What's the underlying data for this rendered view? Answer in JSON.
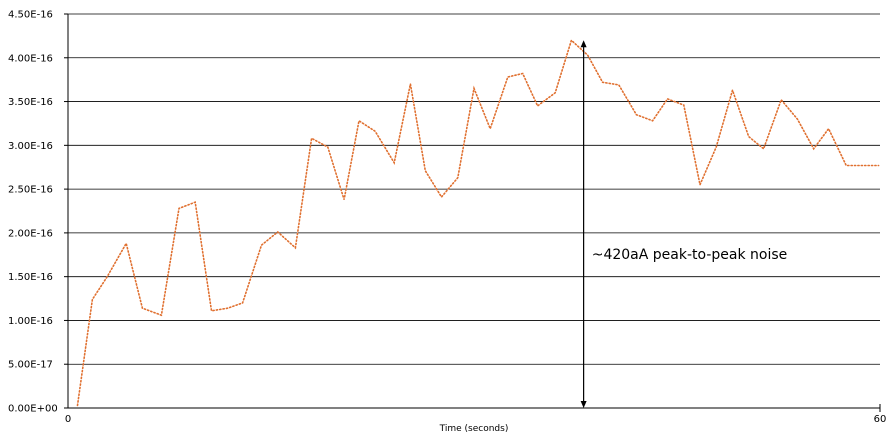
{
  "chart_data": {
    "type": "line",
    "title": "",
    "xlabel": "Time (seconds)",
    "ylabel": "",
    "xlim": [
      0,
      60
    ],
    "ylim": [
      0,
      4.5e-16
    ],
    "x_ticks": [
      {
        "value": 0,
        "label": "0"
      },
      {
        "value": 60,
        "label": "60"
      }
    ],
    "y_ticks": [
      {
        "value": 0,
        "label": "0.00E+00"
      },
      {
        "value": 5e-17,
        "label": "5.00E-17"
      },
      {
        "value": 1e-16,
        "label": "1.00E-16"
      },
      {
        "value": 1.5e-16,
        "label": "1.50E-16"
      },
      {
        "value": 2e-16,
        "label": "2.00E-16"
      },
      {
        "value": 2.5e-16,
        "label": "2.50E-16"
      },
      {
        "value": 3e-16,
        "label": "3.00E-16"
      },
      {
        "value": 3.5e-16,
        "label": "3.50E-16"
      },
      {
        "value": 4e-16,
        "label": "4.00E-16"
      },
      {
        "value": 4.5e-16,
        "label": "4.50E-16"
      }
    ],
    "grid": "horizontal",
    "legend": "none",
    "series": [
      {
        "color": "#e07030",
        "line_style": "dotted",
        "x": [
          0.7,
          1.8,
          2.9,
          4.3,
          5.5,
          6.9,
          8.2,
          9.4,
          10.6,
          11.8,
          12.9,
          14.3,
          15.5,
          16.8,
          18.0,
          19.2,
          20.4,
          21.5,
          22.7,
          24.1,
          25.3,
          26.4,
          27.6,
          28.8,
          30.0,
          31.2,
          32.5,
          33.6,
          34.7,
          36.0,
          37.2,
          38.4,
          39.5,
          40.7,
          42.0,
          43.2,
          44.3,
          45.5,
          46.7,
          47.9,
          49.1,
          50.3,
          51.4,
          52.7,
          53.9,
          55.1,
          56.2,
          57.5,
          58.7,
          59.9
        ],
        "y": [
          3e-18,
          1.24e-16,
          1.5e-16,
          1.88e-16,
          1.14e-16,
          1.06e-16,
          2.28e-16,
          2.35e-16,
          1.11e-16,
          1.14e-16,
          1.2e-16,
          1.86e-16,
          2.01e-16,
          1.83e-16,
          3.08e-16,
          2.98e-16,
          2.38e-16,
          3.28e-16,
          3.16e-16,
          2.8e-16,
          3.7e-16,
          2.71e-16,
          2.41e-16,
          2.63e-16,
          3.65e-16,
          3.19e-16,
          3.78e-16,
          3.82e-16,
          3.45e-16,
          3.6e-16,
          4.2e-16,
          4.03e-16,
          3.72e-16,
          3.69e-16,
          3.35e-16,
          3.28e-16,
          3.53e-16,
          3.46e-16,
          2.55e-16,
          2.98e-16,
          3.63e-16,
          3.1e-16,
          2.96e-16,
          3.52e-16,
          3.3e-16,
          2.96e-16,
          3.19e-16,
          2.77e-16,
          2.77e-16,
          2.77e-16
        ]
      }
    ],
    "annotations": [
      {
        "text": "~420aA peak-to-peak noise",
        "arrow_x": 38.1,
        "arrow_y_from": 0,
        "arrow_y_to": 4.2e-16,
        "text_x": 38.7,
        "text_y": 1.7e-16
      }
    ]
  }
}
